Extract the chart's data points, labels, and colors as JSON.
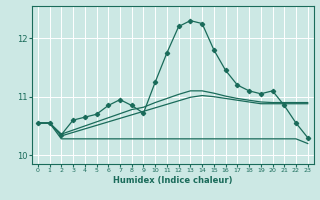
{
  "title": "",
  "xlabel": "Humidex (Indice chaleur)",
  "bg_color": "#cce8e4",
  "grid_color": "#ffffff",
  "line_color": "#1a6b5a",
  "xlim": [
    -0.5,
    23.5
  ],
  "ylim": [
    9.85,
    12.55
  ],
  "yticks": [
    10,
    11,
    12
  ],
  "xticks": [
    0,
    1,
    2,
    3,
    4,
    5,
    6,
    7,
    8,
    9,
    10,
    11,
    12,
    13,
    14,
    15,
    16,
    17,
    18,
    19,
    20,
    21,
    22,
    23
  ],
  "series1_x": [
    0,
    1,
    2,
    3,
    4,
    5,
    6,
    7,
    8,
    9,
    10,
    11,
    12,
    13,
    14,
    15,
    16,
    17,
    18,
    19,
    20,
    21,
    22,
    23
  ],
  "series1_y": [
    10.55,
    10.55,
    10.35,
    10.6,
    10.65,
    10.7,
    10.85,
    10.95,
    10.85,
    10.72,
    11.25,
    11.75,
    12.2,
    12.3,
    12.25,
    11.8,
    11.45,
    11.2,
    11.1,
    11.05,
    11.1,
    10.85,
    10.55,
    10.3
  ],
  "series2_x": [
    0,
    1,
    2,
    3,
    4,
    5,
    6,
    7,
    8,
    9,
    10,
    11,
    12,
    13,
    14,
    15,
    16,
    17,
    18,
    19,
    20,
    21,
    22,
    23
  ],
  "series2_y": [
    10.55,
    10.55,
    10.28,
    10.28,
    10.28,
    10.28,
    10.28,
    10.28,
    10.28,
    10.28,
    10.28,
    10.28,
    10.28,
    10.28,
    10.28,
    10.28,
    10.28,
    10.28,
    10.28,
    10.28,
    10.28,
    10.28,
    10.28,
    10.2
  ],
  "series3_x": [
    0,
    1,
    2,
    3,
    4,
    5,
    6,
    7,
    8,
    9,
    10,
    11,
    12,
    13,
    14,
    15,
    16,
    17,
    18,
    19,
    20,
    21,
    22,
    23
  ],
  "series3_y": [
    10.55,
    10.55,
    10.33,
    10.39,
    10.45,
    10.51,
    10.57,
    10.63,
    10.69,
    10.75,
    10.81,
    10.87,
    10.93,
    10.99,
    11.02,
    11.0,
    10.97,
    10.94,
    10.91,
    10.88,
    10.88,
    10.88,
    10.88,
    10.88
  ],
  "series4_x": [
    0,
    1,
    2,
    3,
    4,
    5,
    6,
    7,
    8,
    9,
    10,
    11,
    12,
    13,
    14,
    15,
    16,
    17,
    18,
    19,
    20,
    21,
    22,
    23
  ],
  "series4_y": [
    10.55,
    10.55,
    10.36,
    10.43,
    10.5,
    10.57,
    10.64,
    10.71,
    10.78,
    10.82,
    10.9,
    10.97,
    11.04,
    11.1,
    11.1,
    11.06,
    11.01,
    10.97,
    10.94,
    10.91,
    10.9,
    10.9,
    10.9,
    10.9
  ]
}
